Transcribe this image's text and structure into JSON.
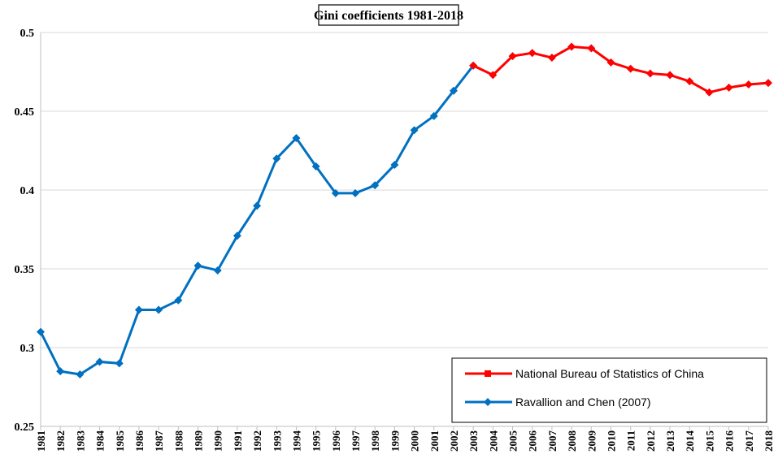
{
  "chart_data": {
    "type": "line",
    "title": "Gini coefficients 1981-2018",
    "xlabel": "",
    "ylabel": "",
    "ylim": [
      0.25,
      0.5
    ],
    "yticks": [
      "0.25",
      "0.3",
      "0.35",
      "0.4",
      "0.45",
      "0.5"
    ],
    "ytick_values": [
      0.25,
      0.3,
      0.35,
      0.4,
      0.45,
      0.5
    ],
    "categories": [
      "1981",
      "1982",
      "1983",
      "1984",
      "1985",
      "1986",
      "1987",
      "1988",
      "1989",
      "1990",
      "1991",
      "1992",
      "1993",
      "1994",
      "1995",
      "1996",
      "1997",
      "1998",
      "1999",
      "2000",
      "2001",
      "2002",
      "2003",
      "2004",
      "2005",
      "2006",
      "2007",
      "2008",
      "2009",
      "2010",
      "2011",
      "2012",
      "2013",
      "2014",
      "2015",
      "2016",
      "2017",
      "2018"
    ],
    "grid": "horizontal",
    "legend_position": "bottom-right",
    "series": [
      {
        "name": "National Bureau of Statistics of China",
        "color": "#ff0000",
        "marker": "diamond",
        "x": [
          "2003",
          "2004",
          "2005",
          "2006",
          "2007",
          "2008",
          "2009",
          "2010",
          "2011",
          "2012",
          "2013",
          "2014",
          "2015",
          "2016",
          "2017",
          "2018"
        ],
        "values": [
          0.479,
          0.473,
          0.485,
          0.487,
          0.484,
          0.491,
          0.49,
          0.481,
          0.477,
          0.474,
          0.473,
          0.469,
          0.462,
          0.465,
          0.467,
          0.468
        ]
      },
      {
        "name": "Ravallion and Chen (2007)",
        "color": "#0070c0",
        "marker": "diamond",
        "x": [
          "1981",
          "1982",
          "1983",
          "1984",
          "1985",
          "1986",
          "1987",
          "1988",
          "1989",
          "1990",
          "1991",
          "1992",
          "1993",
          "1994",
          "1995",
          "1996",
          "1997",
          "1998",
          "1999",
          "2000",
          "2001",
          "2002",
          "2003"
        ],
        "values": [
          0.31,
          0.285,
          0.283,
          0.291,
          0.29,
          0.324,
          0.324,
          0.33,
          0.352,
          0.349,
          0.371,
          0.39,
          0.42,
          0.433,
          0.415,
          0.398,
          0.398,
          0.403,
          0.416,
          0.438,
          0.447,
          0.463,
          0.479
        ]
      }
    ]
  }
}
